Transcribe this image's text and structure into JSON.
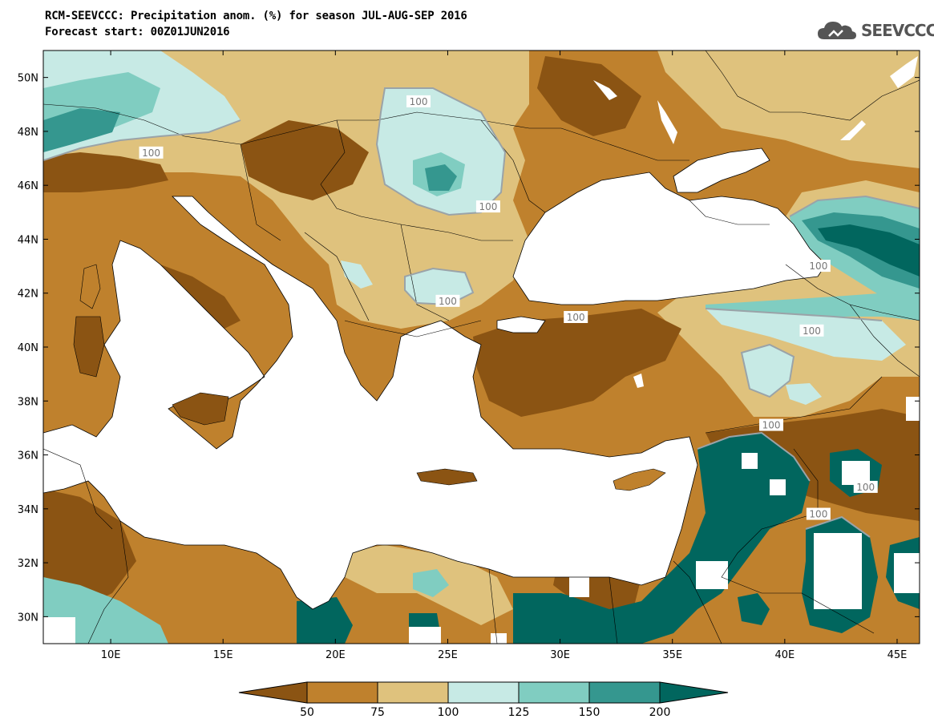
{
  "header": {
    "title_line1": "RCM-SEEVCCC: Precipitation anom. (%) for season JUL-AUG-SEP 2016",
    "title_line2": "Forecast start: 00Z01JUN2016"
  },
  "logo": {
    "text": "SEEVCCC",
    "icon": "cloud-icon"
  },
  "map": {
    "projection": "lat-lon",
    "lon_range": [
      7,
      46
    ],
    "lat_range": [
      29,
      51
    ],
    "lat_ticks": [
      "50N",
      "48N",
      "46N",
      "44N",
      "42N",
      "40N",
      "38N",
      "36N",
      "34N",
      "32N",
      "30N"
    ],
    "lon_ticks": [
      "10E",
      "15E",
      "20E",
      "25E",
      "30E",
      "35E",
      "40E",
      "45E"
    ],
    "contour_labels": [
      {
        "text": "100",
        "lon": 23.7,
        "lat": 49.1
      },
      {
        "text": "100",
        "lon": 11.8,
        "lat": 47.2
      },
      {
        "text": "100",
        "lon": 26.8,
        "lat": 45.2
      },
      {
        "text": "100",
        "lon": 25.0,
        "lat": 41.7
      },
      {
        "text": "100",
        "lon": 30.7,
        "lat": 41.1
      },
      {
        "text": "100",
        "lon": 41.5,
        "lat": 43.0
      },
      {
        "text": "100",
        "lon": 41.2,
        "lat": 40.6
      },
      {
        "text": "100",
        "lon": 39.4,
        "lat": 37.1
      },
      {
        "text": "100",
        "lon": 41.5,
        "lat": 33.8
      },
      {
        "text": "100",
        "lon": 43.6,
        "lat": 34.8
      }
    ],
    "colors": {
      "lt50": "#8b5413",
      "50_75": "#bf812d",
      "75_100": "#dfc27d",
      "100_125": "#c7eae5",
      "125_150": "#80cdc1",
      "150_200": "#35978f",
      "gt200": "#01665e",
      "no_data": "#ffffff"
    }
  },
  "colorbar": {
    "labels": [
      "50",
      "75",
      "100",
      "125",
      "150",
      "200"
    ],
    "colors": [
      "#8b5413",
      "#bf812d",
      "#dfc27d",
      "#c7eae5",
      "#80cdc1",
      "#35978f",
      "#01665e"
    ]
  }
}
